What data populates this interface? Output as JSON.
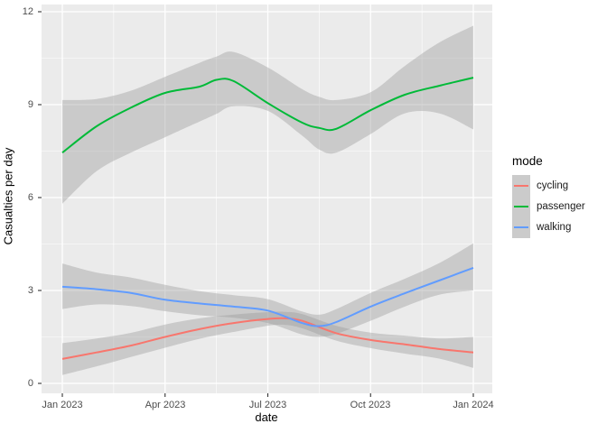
{
  "figure": {
    "background": "#FFFFFF",
    "panel_background": "#EBEBEB",
    "grid_color": "#FFFFFF",
    "tick_mark_color": "#333333",
    "axis_text_color": "#4D4D4D"
  },
  "y_axis": {
    "title": "Casualties per day",
    "ticks": [
      "12",
      "9",
      "6",
      "3",
      "0"
    ]
  },
  "x_axis": {
    "title": "date",
    "ticks": [
      "Jan 2023",
      "Apr 2023",
      "Jul 2023",
      "Oct 2023",
      "Jan 2024"
    ]
  },
  "legend": {
    "title": "mode",
    "key_fill": "#CBCBCB",
    "items": [
      {
        "label": "cycling",
        "color": "#F8766D"
      },
      {
        "label": "passenger",
        "color": "#00BA38"
      },
      {
        "label": "walking",
        "color": "#619CFF"
      }
    ]
  },
  "chart_data": {
    "type": "line",
    "title": "",
    "xlabel": "date",
    "ylabel": "Casualties per day",
    "x_tick_labels": [
      "Jan 2023",
      "Apr 2023",
      "Jul 2023",
      "Oct 2023",
      "Jan 2024"
    ],
    "x_unit": "months since Jan 2023",
    "x_major_breaks": [
      0,
      3,
      6,
      9,
      12
    ],
    "x_minor_breaks": [
      1.5,
      4.5,
      7.5,
      10.5
    ],
    "y_major_breaks": [
      0,
      3,
      6,
      9,
      12
    ],
    "y_minor_breaks": [
      1.5,
      4.5,
      7.5,
      10.5
    ],
    "ylim": [
      0,
      12.35
    ],
    "grid": true,
    "legend_position": "right",
    "ribbon_fill": "rgba(153,153,153,0.4)",
    "series": [
      {
        "name": "cycling",
        "color": "#F8766D",
        "x": [
          0,
          1,
          2,
          3,
          4,
          5,
          6,
          6.5,
          7,
          8,
          9,
          10,
          11,
          12
        ],
        "y": [
          0.79,
          1.0,
          1.22,
          1.5,
          1.75,
          1.95,
          2.08,
          2.1,
          2.02,
          1.62,
          1.4,
          1.26,
          1.11,
          1.0
        ],
        "upper": [
          1.3,
          1.45,
          1.63,
          1.9,
          2.1,
          2.22,
          2.3,
          2.31,
          2.24,
          1.86,
          1.64,
          1.54,
          1.45,
          1.5
        ],
        "lower": [
          0.27,
          0.55,
          0.85,
          1.15,
          1.44,
          1.66,
          1.86,
          1.89,
          1.78,
          1.38,
          1.14,
          0.96,
          0.8,
          0.5
        ]
      },
      {
        "name": "passenger",
        "color": "#00BA38",
        "x": [
          0,
          1,
          2,
          3,
          4,
          4.5,
          5,
          6,
          7,
          7.5,
          8,
          9,
          10,
          11,
          12
        ],
        "y": [
          7.45,
          8.3,
          8.9,
          9.38,
          9.58,
          9.8,
          9.76,
          9.05,
          8.42,
          8.25,
          8.22,
          8.82,
          9.32,
          9.61,
          9.87
        ],
        "upper": [
          9.15,
          9.18,
          9.45,
          9.9,
          10.35,
          10.55,
          10.7,
          10.2,
          9.5,
          9.25,
          9.15,
          9.4,
          10.25,
          11.0,
          11.55
        ],
        "lower": [
          5.8,
          6.85,
          7.45,
          7.95,
          8.45,
          8.7,
          8.95,
          8.8,
          8.0,
          7.55,
          7.45,
          8.05,
          8.72,
          8.72,
          8.2
        ]
      },
      {
        "name": "walking",
        "color": "#619CFF",
        "x": [
          0,
          1,
          2,
          3,
          4,
          5,
          6,
          7,
          7.5,
          8,
          9,
          10,
          11,
          12
        ],
        "y": [
          3.12,
          3.04,
          2.92,
          2.7,
          2.58,
          2.48,
          2.35,
          1.95,
          1.85,
          1.98,
          2.48,
          2.91,
          3.32,
          3.73
        ],
        "upper": [
          3.87,
          3.58,
          3.42,
          3.18,
          2.98,
          2.85,
          2.72,
          2.32,
          2.22,
          2.4,
          2.92,
          3.38,
          3.88,
          4.52
        ],
        "lower": [
          2.4,
          2.55,
          2.5,
          2.33,
          2.2,
          2.12,
          1.95,
          1.58,
          1.5,
          1.6,
          2.02,
          2.48,
          2.86,
          3.0
        ]
      }
    ]
  }
}
